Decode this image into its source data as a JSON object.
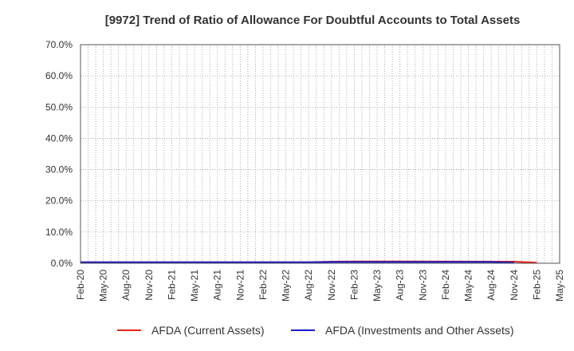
{
  "chart_data": {
    "type": "line",
    "title": "[9972]  Trend of Ratio of Allowance For Doubtful Accounts to Total Assets",
    "xlabel": "",
    "ylabel": "",
    "ylim": [
      0,
      70
    ],
    "y_ticks": [
      "0.0%",
      "10.0%",
      "20.0%",
      "30.0%",
      "40.0%",
      "50.0%",
      "60.0%",
      "70.0%"
    ],
    "x_range": [
      "Feb-20",
      "May-25"
    ],
    "x_ticks": [
      "Feb-20",
      "May-20",
      "Aug-20",
      "Nov-20",
      "Feb-21",
      "May-21",
      "Aug-21",
      "Nov-21",
      "Feb-22",
      "May-22",
      "Aug-22",
      "Nov-22",
      "Feb-23",
      "May-23",
      "Aug-23",
      "Nov-23",
      "Feb-24",
      "May-24",
      "Aug-24",
      "Nov-24",
      "Feb-25",
      "May-25"
    ],
    "grid": true,
    "legend_position": "bottom",
    "series": [
      {
        "name": "AFDA (Current Assets)",
        "color": "#e8221b",
        "x": [
          "Feb-20",
          "Aug-22",
          "Nov-22",
          "Feb-23",
          "Nov-24",
          "Feb-25"
        ],
        "values": [
          0.3,
          0.3,
          0.5,
          0.6,
          0.5,
          0.2
        ]
      },
      {
        "name": "AFDA (Investments and Other Assets)",
        "color": "#1a1ac8",
        "x": [
          "Feb-20",
          "Aug-22",
          "Nov-22",
          "Feb-23",
          "Aug-24",
          "Nov-24"
        ],
        "values": [
          0.3,
          0.3,
          0.4,
          0.4,
          0.4,
          0.2
        ]
      }
    ]
  }
}
